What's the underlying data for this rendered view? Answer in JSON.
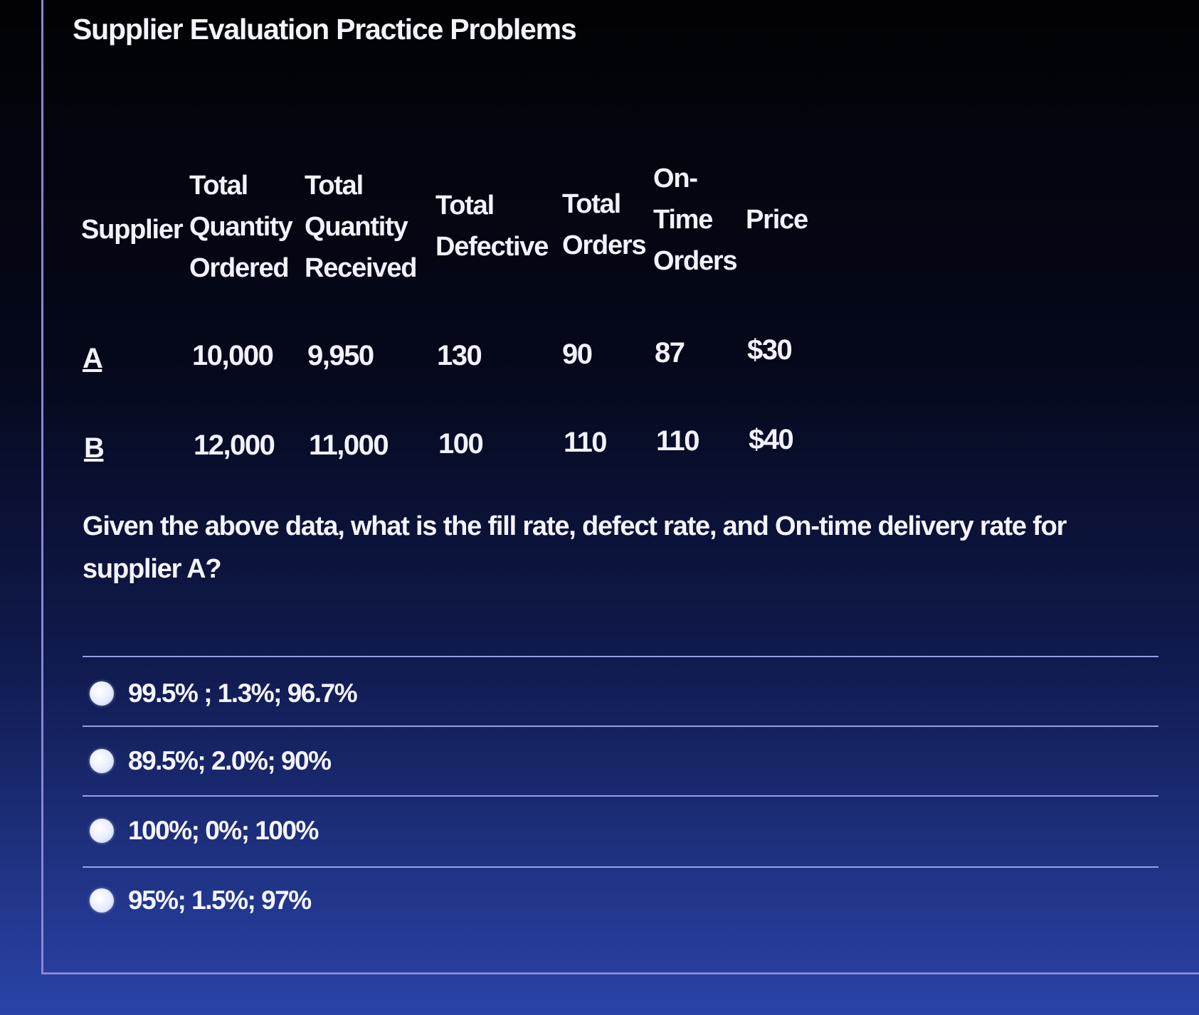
{
  "title": "Supplier Evaluation Practice Problems",
  "table": {
    "headers": {
      "supplier": [
        "Supplier"
      ],
      "qty_ordered": [
        "Total",
        "Quantity",
        "Ordered"
      ],
      "qty_received": [
        "Total",
        "Quantity",
        "Received"
      ],
      "defective": [
        "Total",
        "Defective"
      ],
      "orders": [
        "Total",
        "Orders"
      ],
      "on_time": [
        "On-",
        "Time",
        "Orders"
      ],
      "price": [
        "Price"
      ]
    },
    "rows": [
      {
        "supplier": "A",
        "qty_ordered": "10,000",
        "qty_received": "9,950",
        "defective": "130",
        "orders": "90",
        "on_time": "87",
        "price": "$30"
      },
      {
        "supplier": "B",
        "qty_ordered": "12,000",
        "qty_received": "11,000",
        "defective": "100",
        "orders": "110",
        "on_time": "110",
        "price": "$40"
      }
    ]
  },
  "question": "Given the above data, what is the fill rate, defect rate, and On-time delivery rate for supplier A?",
  "options": [
    {
      "label": "99.5% ; 1.3%; 96.7%"
    },
    {
      "label": "89.5%; 2.0%; 90%"
    },
    {
      "label": "100%; 0%; 100%"
    },
    {
      "label": "95%; 1.5%; 97%"
    }
  ],
  "colors": {
    "text": "#f4f4ff",
    "divider": "#a9b6ff",
    "frame": "#8a86d6"
  }
}
